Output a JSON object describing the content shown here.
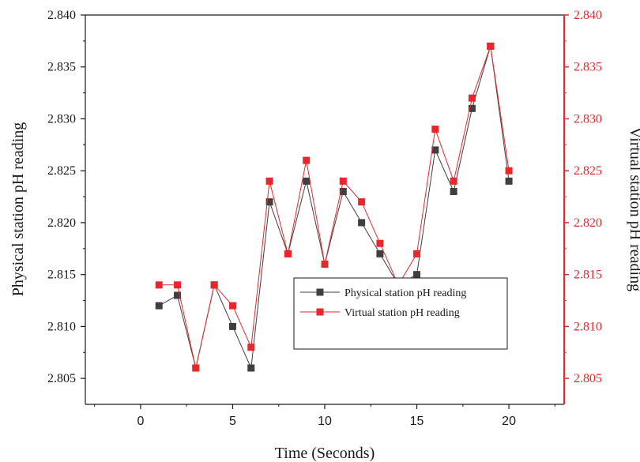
{
  "chart_data": {
    "type": "line",
    "xlabel": "Time (Seconds)",
    "ylabel_left": "Physical station pH reading",
    "ylabel_right": "Virtual station pH reading",
    "xlim": [
      -3,
      23
    ],
    "ylim": [
      2.8025,
      2.84
    ],
    "x_ticks": [
      0,
      5,
      10,
      15,
      20
    ],
    "y_ticks": [
      2.805,
      2.81,
      2.815,
      2.82,
      2.825,
      2.83,
      2.835,
      2.84
    ],
    "x_tick_labels": [
      "0",
      "5",
      "10",
      "15",
      "20"
    ],
    "y_tick_labels": [
      "2.805",
      "2.810",
      "2.815",
      "2.820",
      "2.825",
      "2.830",
      "2.835",
      "2.840"
    ],
    "legend_position": "center-right",
    "x": [
      1,
      2,
      3,
      4,
      5,
      6,
      7,
      8,
      9,
      10,
      11,
      12,
      13,
      14,
      15,
      16,
      17,
      18,
      19,
      20
    ],
    "series": [
      {
        "name": "Physical station pH reading",
        "color": "#3f3f3f",
        "axis": "left",
        "values": [
          2.812,
          2.813,
          2.806,
          2.814,
          2.81,
          2.806,
          2.822,
          2.817,
          2.824,
          2.816,
          2.823,
          2.82,
          2.817,
          2.814,
          2.815,
          2.827,
          2.823,
          2.831,
          2.837,
          2.824
        ]
      },
      {
        "name": "Virtual station pH reading",
        "color": "#e8262b",
        "axis": "right",
        "values": [
          2.814,
          2.814,
          2.806,
          2.814,
          2.812,
          2.808,
          2.824,
          2.817,
          2.826,
          2.816,
          2.824,
          2.822,
          2.818,
          2.814,
          2.817,
          2.829,
          2.824,
          2.832,
          2.837,
          2.825
        ]
      }
    ],
    "colors": {
      "left_axis": "#1a1a1a",
      "right_axis": "#e8262b"
    }
  }
}
